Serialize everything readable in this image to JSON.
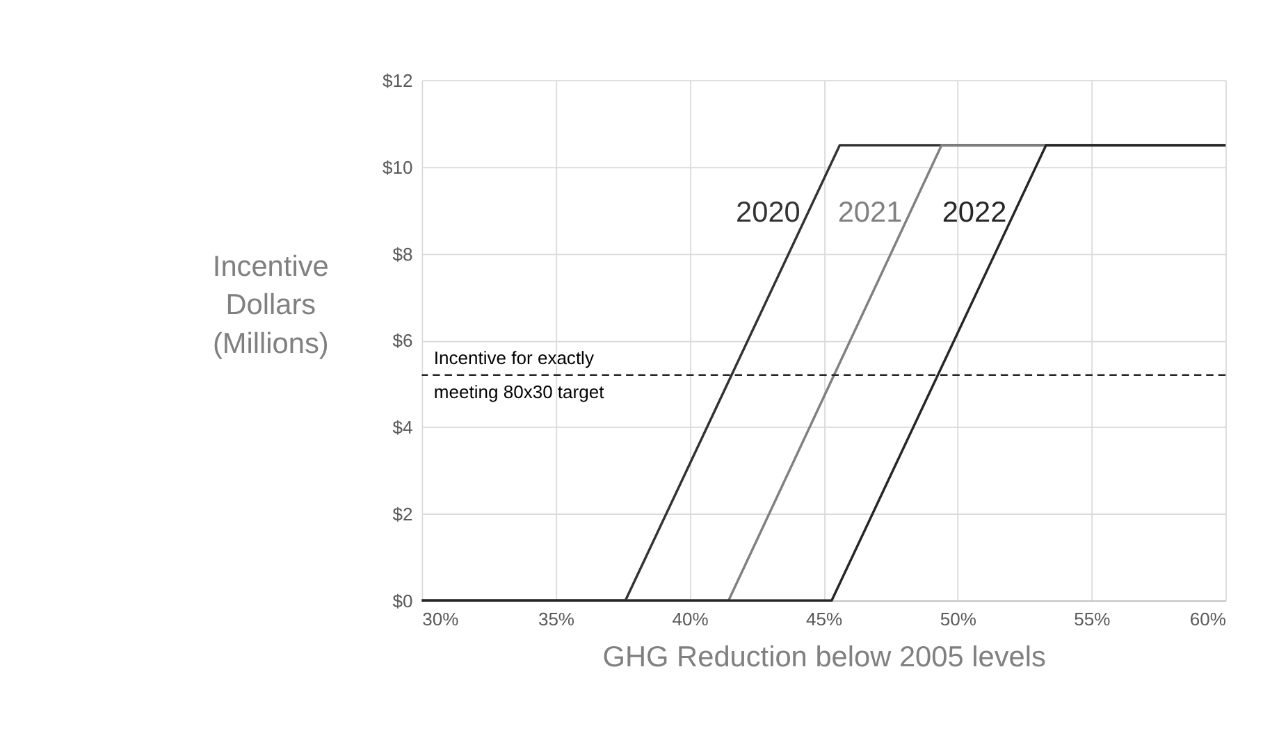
{
  "chart_data": {
    "type": "line",
    "xlabel": "GHG Reduction below 2005 levels",
    "ylabel": "Incentive\nDollars\n(Millions)",
    "xlim": [
      30,
      60
    ],
    "ylim": [
      0,
      12
    ],
    "xticks": [
      {
        "value": 30,
        "label": "30%"
      },
      {
        "value": 35,
        "label": "35%"
      },
      {
        "value": 40,
        "label": "40%"
      },
      {
        "value": 45,
        "label": "45%"
      },
      {
        "value": 50,
        "label": "50%"
      },
      {
        "value": 55,
        "label": "55%"
      },
      {
        "value": 60,
        "label": "60%"
      }
    ],
    "yticks": [
      {
        "value": 0,
        "label": "$0"
      },
      {
        "value": 2,
        "label": "$2"
      },
      {
        "value": 4,
        "label": "$4"
      },
      {
        "value": 6,
        "label": "$6"
      },
      {
        "value": 8,
        "label": "$8"
      },
      {
        "value": 10,
        "label": "$10"
      },
      {
        "value": 12,
        "label": "$12"
      }
    ],
    "grid": true,
    "line_style": "solid",
    "series": [
      {
        "name": "2020",
        "color": "#333333",
        "x": [
          30,
          37.6,
          45.6,
          60
        ],
        "values": [
          0,
          0,
          10.5,
          10.5
        ]
      },
      {
        "name": "2021",
        "color": "#808080",
        "x": [
          30,
          41.45,
          49.4,
          60
        ],
        "values": [
          0,
          0,
          10.5,
          10.5
        ]
      },
      {
        "name": "2022",
        "color": "#262626",
        "x": [
          30,
          45.3,
          53.3,
          60
        ],
        "values": [
          0,
          0,
          10.5,
          10.5
        ]
      }
    ],
    "ref_lines": [
      {
        "axis": "y",
        "value": 5.2,
        "label": "Incentive for exactly\nmeeting 80x30 target",
        "color": "#262626",
        "line_style": "dashed"
      }
    ]
  }
}
